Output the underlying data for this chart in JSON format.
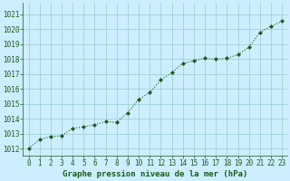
{
  "x": [
    0,
    1,
    2,
    3,
    4,
    5,
    6,
    7,
    8,
    9,
    10,
    11,
    12,
    13,
    14,
    15,
    16,
    17,
    18,
    19,
    20,
    21,
    22,
    23
  ],
  "y": [
    1012.0,
    1012.6,
    1012.8,
    1012.85,
    1013.35,
    1013.45,
    1013.6,
    1013.8,
    1013.75,
    1014.4,
    1015.3,
    1015.75,
    1016.6,
    1017.1,
    1017.7,
    1017.9,
    1018.05,
    1018.0,
    1018.05,
    1018.3,
    1018.8,
    1019.8,
    1020.2,
    1020.55
  ],
  "line_color": "#1a5c1a",
  "marker": "D",
  "marker_size": 2.2,
  "bg_color": "#cceeff",
  "grid_color": "#99cccc",
  "title": "Graphe pression niveau de la mer (hPa)",
  "title_color": "#1a5c1a",
  "ylim_min": 1011.5,
  "ylim_max": 1021.8,
  "yticks": [
    1012,
    1013,
    1014,
    1015,
    1016,
    1017,
    1018,
    1019,
    1020,
    1021
  ],
  "xticks": [
    0,
    1,
    2,
    3,
    4,
    5,
    6,
    7,
    8,
    9,
    10,
    11,
    12,
    13,
    14,
    15,
    16,
    17,
    18,
    19,
    20,
    21,
    22,
    23
  ],
  "tick_fontsize": 5.5,
  "xlabel_fontsize": 6.5,
  "spine_color": "#1a5c1a",
  "tick_color": "#1a5c1a"
}
